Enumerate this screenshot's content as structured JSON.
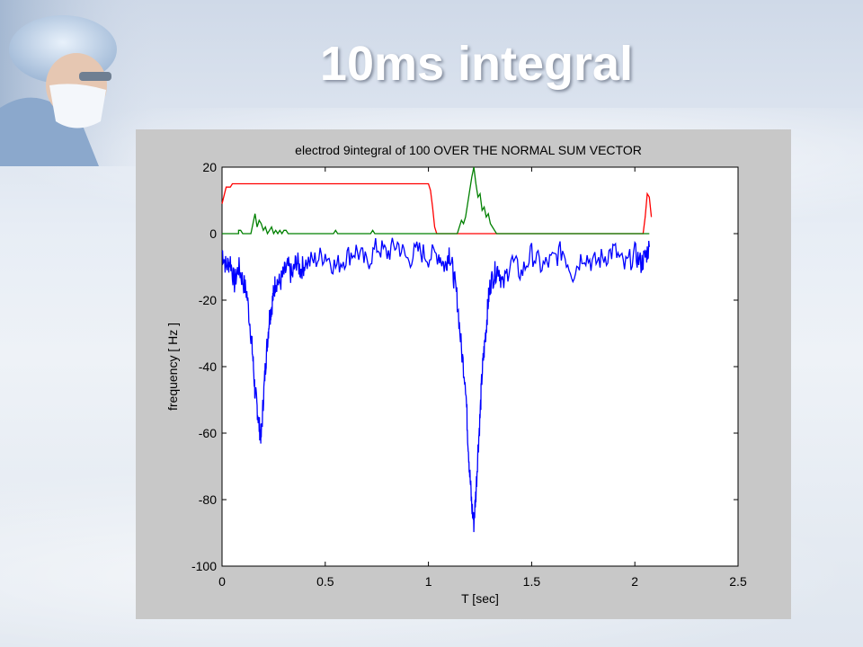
{
  "slide": {
    "title": "10ms integral"
  },
  "chart_data": {
    "type": "line",
    "title": "electrod 9integral of 100 OVER THE NORMAL SUM VECTOR",
    "xlabel": "T [sec]",
    "ylabel": "frequency [ Hz ]",
    "xlim": [
      0,
      2.5
    ],
    "ylim": [
      -100,
      20
    ],
    "xticks": [
      0,
      0.5,
      1,
      1.5,
      2,
      2.5
    ],
    "xtick_labels": [
      "0",
      "0.5",
      "1",
      "1.5",
      "2",
      "2.5"
    ],
    "yticks": [
      20,
      0,
      -20,
      -40,
      -60,
      -80,
      -100
    ],
    "ytick_labels": [
      "20",
      "0",
      "-20",
      "-40",
      "-60",
      "-80",
      "-100"
    ],
    "grid": false,
    "series": [
      {
        "color": "#ff0000",
        "x": [
          0,
          0.02,
          0.04,
          0.05,
          0.07,
          0.5,
          1.0,
          1.01,
          1.02,
          1.03,
          1.04,
          1.1,
          1.5,
          2.0,
          2.04,
          2.05,
          2.06,
          2.07,
          2.08
        ],
        "y": [
          9,
          14,
          14,
          15,
          15,
          15,
          15,
          13,
          8,
          2,
          0,
          0,
          0,
          0,
          0,
          5,
          12,
          11,
          5
        ]
      },
      {
        "color": "#008000",
        "x": [
          0,
          0.08,
          0.08,
          0.09,
          0.1,
          0.14,
          0.15,
          0.16,
          0.17,
          0.18,
          0.19,
          0.2,
          0.21,
          0.22,
          0.23,
          0.24,
          0.25,
          0.26,
          0.27,
          0.28,
          0.29,
          0.3,
          0.31,
          0.32,
          0.4,
          0.54,
          0.55,
          0.56,
          0.72,
          0.73,
          0.74,
          1.0,
          1.14,
          1.15,
          1.16,
          1.17,
          1.18,
          1.19,
          1.2,
          1.21,
          1.22,
          1.23,
          1.24,
          1.25,
          1.26,
          1.27,
          1.28,
          1.29,
          1.3,
          1.31,
          1.32,
          1.33,
          1.5,
          2.0,
          2.07
        ],
        "y": [
          0,
          0,
          1,
          1,
          0,
          0,
          3,
          6,
          2,
          4,
          3,
          1,
          2,
          0,
          1,
          2,
          0,
          1,
          0,
          1,
          0,
          1,
          1,
          0,
          0,
          0,
          1,
          0,
          0,
          1,
          0,
          0,
          0,
          2,
          4,
          3,
          5,
          9,
          13,
          17,
          20,
          15,
          11,
          12,
          7,
          8,
          5,
          6,
          3,
          2,
          1,
          0,
          0,
          0,
          0
        ]
      },
      {
        "color": "#0000ff",
        "x": [
          0,
          0.02,
          0.04,
          0.06,
          0.08,
          0.1,
          0.12,
          0.14,
          0.15,
          0.16,
          0.17,
          0.18,
          0.19,
          0.2,
          0.21,
          0.22,
          0.23,
          0.24,
          0.25,
          0.26,
          0.28,
          0.3,
          0.32,
          0.34,
          0.36,
          0.38,
          0.4,
          0.45,
          0.5,
          0.55,
          0.6,
          0.65,
          0.7,
          0.75,
          0.8,
          0.85,
          0.9,
          0.95,
          1.0,
          1.05,
          1.08,
          1.1,
          1.12,
          1.14,
          1.16,
          1.18,
          1.19,
          1.2,
          1.21,
          1.22,
          1.23,
          1.24,
          1.25,
          1.26,
          1.27,
          1.28,
          1.29,
          1.3,
          1.32,
          1.34,
          1.36,
          1.4,
          1.45,
          1.5,
          1.55,
          1.6,
          1.65,
          1.7,
          1.75,
          1.8,
          1.85,
          1.9,
          1.95,
          2.0,
          2.03,
          2.05,
          2.07
        ],
        "y": [
          -5,
          -10,
          -8,
          -15,
          -10,
          -14,
          -18,
          -30,
          -38,
          -48,
          -52,
          -58,
          -61,
          -50,
          -40,
          -32,
          -25,
          -22,
          -18,
          -14,
          -15,
          -12,
          -10,
          -13,
          -8,
          -11,
          -9,
          -8,
          -6,
          -10,
          -7,
          -5,
          -9,
          -4,
          -6,
          -3,
          -8,
          -5,
          -7,
          -6,
          -10,
          -5,
          -12,
          -20,
          -35,
          -45,
          -60,
          -72,
          -82,
          -87,
          -78,
          -65,
          -55,
          -42,
          -35,
          -28,
          -20,
          -15,
          -12,
          -10,
          -16,
          -8,
          -12,
          -6,
          -10,
          -8,
          -5,
          -12,
          -6,
          -9,
          -7,
          -5,
          -10,
          -6,
          -9,
          -7,
          -4
        ]
      }
    ]
  }
}
